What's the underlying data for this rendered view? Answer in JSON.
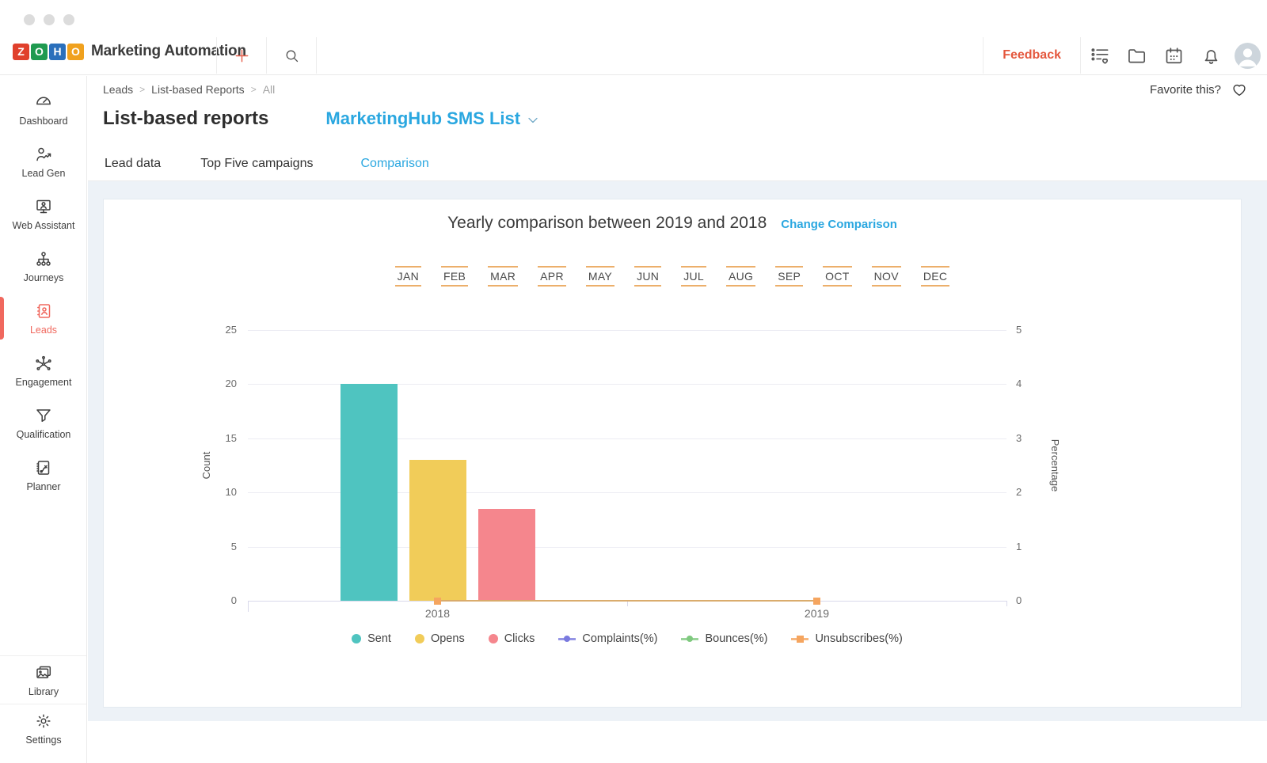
{
  "topbar": {
    "brand": "Marketing Automation",
    "logo": {
      "letters": [
        "Z",
        "O",
        "H",
        "O"
      ],
      "colors": [
        "#E0402C",
        "#1F9A50",
        "#2A6FBB",
        "#F0A11E"
      ]
    },
    "feedback_label": "Feedback",
    "action_icons": [
      "plus-icon",
      "search-icon"
    ],
    "right_icons": [
      "reports-list-icon",
      "folder-icon",
      "calendar-icon",
      "notifications-bell-icon",
      "user-avatar"
    ]
  },
  "breadcrumb": {
    "items": [
      "Leads",
      "List-based Reports",
      "All"
    ],
    "separator": ">"
  },
  "favorite": {
    "label": "Favorite this?",
    "icon": "heart-icon"
  },
  "page": {
    "title": "List-based reports",
    "selector_value": "MarketingHub SMS List"
  },
  "tabs": [
    {
      "label": "Lead data",
      "active": false
    },
    {
      "label": "Top Five campaigns",
      "active": false
    },
    {
      "label": "Comparison",
      "active": true
    }
  ],
  "sidebar": {
    "top_items": [
      {
        "label": "Dashboard",
        "icon": "dashboard-icon",
        "active": false
      },
      {
        "label": "Lead Gen",
        "icon": "lead-gen-icon",
        "active": false
      },
      {
        "label": "Web Assistant",
        "icon": "web-assistant-icon",
        "active": false
      },
      {
        "label": "Journeys",
        "icon": "journeys-icon",
        "active": false
      },
      {
        "label": "Leads",
        "icon": "leads-icon",
        "active": true
      },
      {
        "label": "Engagement",
        "icon": "engagement-icon",
        "active": false
      },
      {
        "label": "Qualification",
        "icon": "qualification-icon",
        "active": false
      },
      {
        "label": "Planner",
        "icon": "planner-icon",
        "active": false
      }
    ],
    "bottom_items": [
      {
        "label": "Library",
        "icon": "library-icon",
        "active": false
      },
      {
        "label": "Settings",
        "icon": "settings-icon",
        "active": false
      }
    ]
  },
  "months": [
    "JAN",
    "FEB",
    "MAR",
    "APR",
    "MAY",
    "JUN",
    "JUL",
    "AUG",
    "SEP",
    "OCT",
    "NOV",
    "DEC"
  ],
  "chart_data": {
    "type": "bar",
    "title": "Yearly comparison between 2019 and 2018",
    "change_comparison_label": "Change Comparison",
    "categories": [
      "2018",
      "2019"
    ],
    "series": [
      {
        "name": "Sent",
        "kind": "bar",
        "axis": "left",
        "color": "#4FC4C0",
        "values": [
          20,
          0
        ]
      },
      {
        "name": "Opens",
        "kind": "bar",
        "axis": "left",
        "color": "#F1CC59",
        "values": [
          13,
          0
        ]
      },
      {
        "name": "Clicks",
        "kind": "bar",
        "axis": "left",
        "color": "#F5868D",
        "values": [
          8.5,
          0
        ]
      },
      {
        "name": "Complaints(%)",
        "kind": "line",
        "axis": "right",
        "color": "#7A7ADF",
        "marker": "circle",
        "values": [
          0,
          0
        ]
      },
      {
        "name": "Bounces(%)",
        "kind": "line",
        "axis": "right",
        "color": "#7FC97F",
        "marker": "circle",
        "values": [
          0,
          0
        ]
      },
      {
        "name": "Unsubscribes(%)",
        "kind": "line",
        "axis": "right",
        "color": "#F5A55F",
        "marker": "square",
        "values": [
          0,
          0
        ]
      }
    ],
    "left_axis": {
      "label": "Count",
      "ticks": [
        0,
        5,
        10,
        15,
        20,
        25
      ],
      "min": 0,
      "max": 25
    },
    "right_axis": {
      "label": "Percentage",
      "ticks": [
        0,
        1,
        2,
        3,
        4,
        5
      ],
      "min": 0,
      "max": 5
    },
    "grid": true,
    "legend_position": "bottom"
  },
  "colors": {
    "accent_blue": "#2AA7E0",
    "feedback_red": "#E4573D",
    "active_nav_red": "#F0685E",
    "month_border_orange": "#ECAF6B"
  }
}
